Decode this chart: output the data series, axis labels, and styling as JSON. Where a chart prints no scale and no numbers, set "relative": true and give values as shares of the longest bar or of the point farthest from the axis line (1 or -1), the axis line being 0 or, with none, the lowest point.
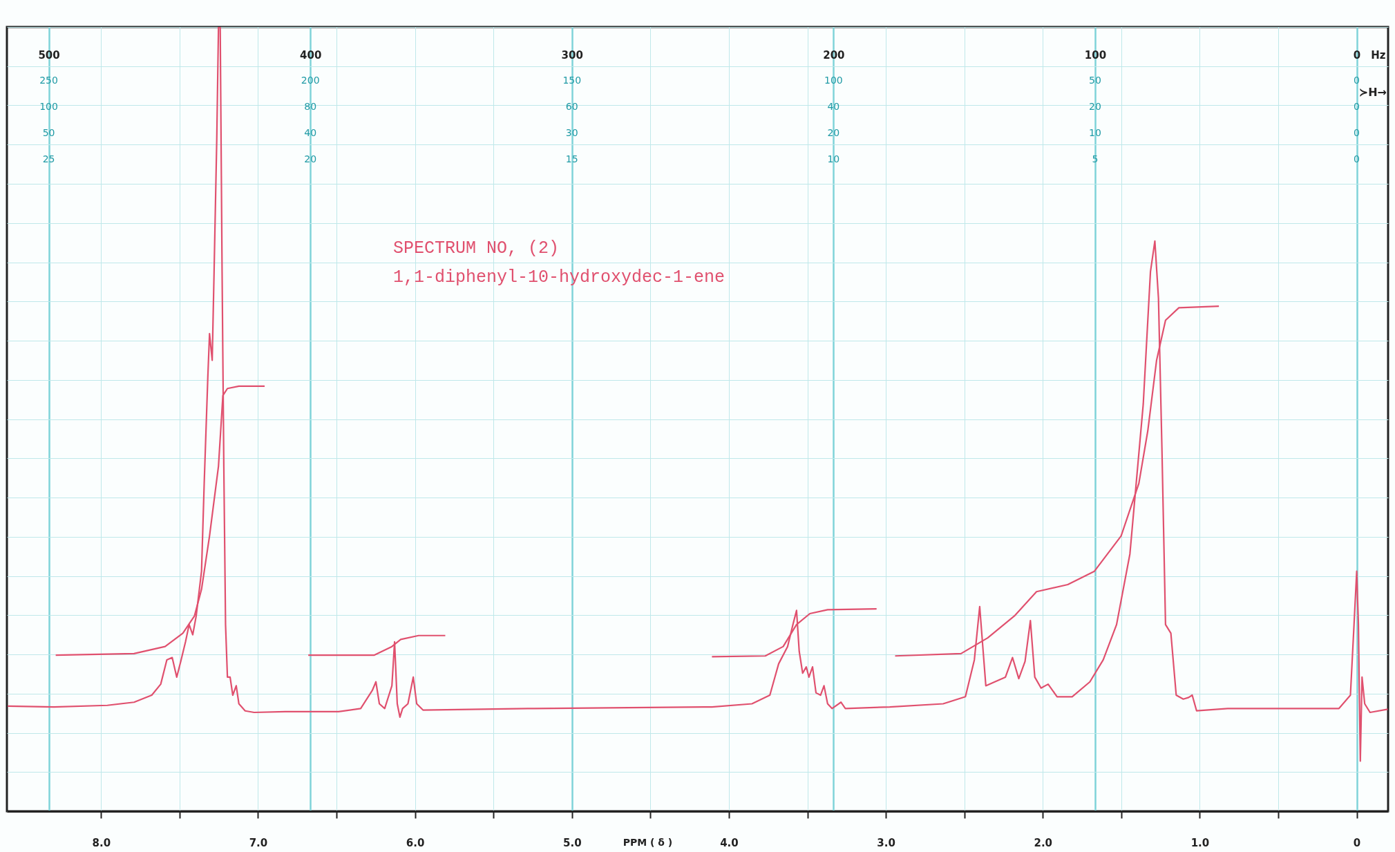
{
  "chart_data": {
    "type": "line",
    "title": "SPECTRUM NO, (2)",
    "subtitle": "1,1-diphenyl-10-hydroxydec-1-ene",
    "xlabel": "PPM ( δ )",
    "x2label": "Hz",
    "annotations": [
      "≻H→",
      "250",
      "200",
      "150",
      "100",
      "50",
      "0",
      "100",
      "80",
      "60",
      "40",
      "20",
      "0",
      "50",
      "40",
      "30",
      "20",
      "10",
      "0",
      "25",
      "20",
      "15",
      "10",
      "5",
      "0"
    ],
    "relative": true,
    "grid": true,
    "xlim": [
      8.6,
      -0.2
    ],
    "xticks": [
      {
        "value": 8,
        "label": "8.0"
      },
      {
        "value": 7.5,
        "label": null
      },
      {
        "value": 7,
        "label": "7.0"
      },
      {
        "value": 6.5,
        "label": null
      },
      {
        "value": 6,
        "label": "6.0"
      },
      {
        "value": 5.5,
        "label": null
      },
      {
        "value": 5,
        "label": "5.0"
      },
      {
        "value": 4.5,
        "label": null
      },
      {
        "value": 4,
        "label": "4.0"
      },
      {
        "value": 3.5,
        "label": null
      },
      {
        "value": 3,
        "label": "3.0"
      },
      {
        "value": 2.5,
        "label": null
      },
      {
        "value": 2,
        "label": "2.0"
      },
      {
        "value": 1.5,
        "label": null
      },
      {
        "value": 1,
        "label": "1.0"
      },
      {
        "value": 0.5,
        "label": null
      },
      0
    ],
    "x2lim": [
      516,
      -12
    ],
    "x2ticks": [
      500,
      400,
      300,
      200,
      100,
      0
    ],
    "series": [
      {
        "color": "#e0506e",
        "x": [
          8.595,
          8.3,
          7.96,
          7.79,
          7.677,
          7.62,
          7.581,
          7.547,
          7.518,
          7.49,
          7.462,
          7.439,
          7.416,
          7.394,
          7.36,
          7.343,
          7.32,
          7.309,
          7.292,
          7.28,
          7.263,
          7.252,
          7.241,
          7.229,
          7.218,
          7.207,
          7.195,
          7.178,
          7.161,
          7.139,
          7.122,
          7.082,
          7.025,
          6.827,
          6.487,
          6.346,
          6.272,
          6.249,
          6.227,
          6.193,
          6.147,
          6.13,
          6.113,
          6.096,
          6.079,
          6.045,
          6.011,
          5.989,
          5.949,
          5.241,
          4.108,
          3.853,
          3.739,
          3.683,
          3.626,
          3.592,
          3.569,
          3.552,
          3.53,
          3.507,
          3.49,
          3.467,
          3.445,
          3.416,
          3.394,
          3.371,
          3.343,
          3.286,
          3.258,
          2.975,
          2.635,
          2.493,
          2.436,
          2.402,
          2.38,
          2.363,
          2.306,
          2.238,
          2.193,
          2.153,
          2.113,
          2.079,
          2.051,
          2.011,
          1.966,
          1.909,
          1.813,
          1.7,
          1.615,
          1.53,
          1.445,
          1.36,
          1.314,
          1.286,
          1.263,
          1.241,
          1.218,
          1.184,
          1.15,
          1.105,
          1.071,
          1.048,
          1.02,
          0.822,
          0.425,
          0.113,
          0.04,
          0.017,
          0,
          -0.011,
          -0.023,
          -0.034,
          -0.051,
          -0.085,
          -0.198
        ],
        "values": [
          0.134,
          0.133,
          0.135,
          0.139,
          0.148,
          0.162,
          0.193,
          0.196,
          0.171,
          0.193,
          0.216,
          0.238,
          0.225,
          0.249,
          0.306,
          0.418,
          0.553,
          0.609,
          0.575,
          0.688,
          0.856,
          1.0,
          1.0,
          0.688,
          0.44,
          0.238,
          0.171,
          0.171,
          0.148,
          0.16,
          0.137,
          0.128,
          0.126,
          0.127,
          0.127,
          0.131,
          0.154,
          0.165,
          0.137,
          0.131,
          0.16,
          0.216,
          0.137,
          0.12,
          0.131,
          0.137,
          0.171,
          0.137,
          0.129,
          0.131,
          0.133,
          0.137,
          0.148,
          0.188,
          0.21,
          0.238,
          0.256,
          0.204,
          0.176,
          0.184,
          0.171,
          0.184,
          0.151,
          0.148,
          0.16,
          0.137,
          0.131,
          0.139,
          0.131,
          0.133,
          0.137,
          0.146,
          0.193,
          0.261,
          0.204,
          0.16,
          0.165,
          0.171,
          0.196,
          0.169,
          0.191,
          0.243,
          0.171,
          0.157,
          0.162,
          0.146,
          0.146,
          0.165,
          0.193,
          0.238,
          0.328,
          0.519,
          0.688,
          0.727,
          0.654,
          0.463,
          0.238,
          0.227,
          0.148,
          0.143,
          0.145,
          0.148,
          0.128,
          0.131,
          0.131,
          0.131,
          0.148,
          0.238,
          0.306,
          0.238,
          0.064,
          0.171,
          0.137,
          0.126,
          0.13
        ]
      },
      {
        "color": "#e0506e",
        "x": [
          8.289,
          7.79,
          7.592,
          7.479,
          7.405,
          7.36,
          7.309,
          7.252,
          7.224,
          7.195,
          7.122,
          6.958,
          6.8,
          6.68,
          6.261,
          6.147,
          6.091,
          5.977,
          5.807,
          5.0,
          4.108,
          3.768,
          3.654,
          3.569,
          3.484,
          3.371,
          3.059,
          3.0,
          2.941,
          2.521,
          2.351,
          2.181,
          2.04,
          1.841,
          1.671,
          1.501,
          1.388,
          1.331,
          1.275,
          1.218,
          1.133,
          0.878
        ],
        "values": [
          0.199,
          0.201,
          0.21,
          0.227,
          0.249,
          0.283,
          0.351,
          0.44,
          0.53,
          0.539,
          0.542,
          0.542,
          null,
          0.199,
          0.199,
          0.21,
          0.219,
          0.224,
          0.224,
          null,
          0.197,
          0.198,
          0.21,
          0.238,
          0.252,
          0.257,
          0.258,
          null,
          0.198,
          0.201,
          0.221,
          0.249,
          0.28,
          0.289,
          0.306,
          0.351,
          0.418,
          0.485,
          0.575,
          0.626,
          0.642,
          0.644
        ]
      }
    ]
  }
}
